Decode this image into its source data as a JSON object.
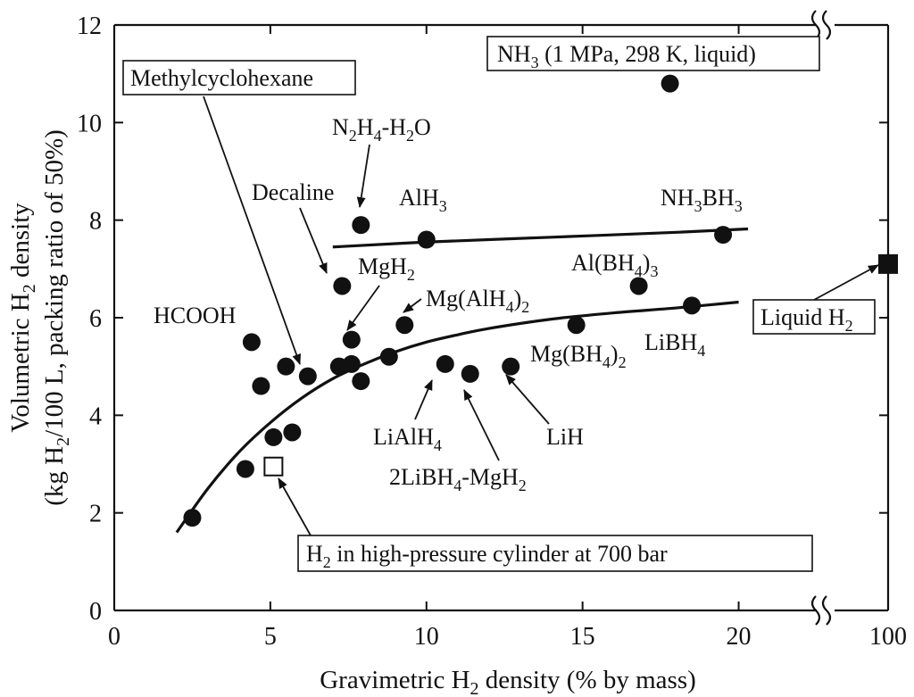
{
  "chart_data": {
    "type": "scatter",
    "xlabel": "Gravimetric H2 density (% by mass)",
    "ylabel_line1": "Volumetric H2 density",
    "ylabel_line2": "(kg H2/100 L, packing ratio of 50%)",
    "xlim": [
      0,
      22.5
    ],
    "x_break_label": "100",
    "ylim": [
      0,
      12
    ],
    "x_ticks": [
      0,
      5,
      10,
      15,
      20
    ],
    "y_ticks": [
      0,
      2,
      4,
      6,
      8,
      10,
      12
    ],
    "points": [
      {
        "label": "NH3 (1 MPa, 298 K, liquid)",
        "x": 17.8,
        "y": 10.8
      },
      {
        "label": "N2H4-H2O",
        "x": 7.9,
        "y": 7.9
      },
      {
        "label": "AlH3",
        "x": 10.0,
        "y": 7.6
      },
      {
        "label": "NH3BH3",
        "x": 19.5,
        "y": 7.7
      },
      {
        "label": "Decaline",
        "x": 7.3,
        "y": 6.65
      },
      {
        "label": "Al(BH4)3",
        "x": 16.8,
        "y": 6.65
      },
      {
        "label": "LiBH4",
        "x": 18.5,
        "y": 6.25
      },
      {
        "label": "MgH2",
        "x": 7.6,
        "y": 5.55
      },
      {
        "label": "Mg(AlH4)2",
        "x": 9.3,
        "y": 5.85
      },
      {
        "label": "Mg(BH4)2",
        "x": 14.8,
        "y": 5.85
      },
      {
        "label": "HCOOH",
        "x": 4.4,
        "y": 5.5
      },
      {
        "label": "Methylcyclohexane",
        "x": 6.2,
        "y": 4.8
      },
      {
        "label": "",
        "x": 4.7,
        "y": 4.6
      },
      {
        "label": "",
        "x": 5.5,
        "y": 5.0
      },
      {
        "label": "",
        "x": 7.2,
        "y": 5.0
      },
      {
        "label": "",
        "x": 7.6,
        "y": 5.05
      },
      {
        "label": "",
        "x": 7.9,
        "y": 4.7
      },
      {
        "label": "",
        "x": 8.8,
        "y": 5.2
      },
      {
        "label": "LiAlH4",
        "x": 10.6,
        "y": 5.05
      },
      {
        "label": "2LiBH4-MgH2",
        "x": 11.4,
        "y": 4.85
      },
      {
        "label": "LiH",
        "x": 12.7,
        "y": 5.0
      },
      {
        "label": "",
        "x": 5.1,
        "y": 3.55
      },
      {
        "label": "",
        "x": 5.7,
        "y": 3.65
      },
      {
        "label": "",
        "x": 4.2,
        "y": 2.9
      },
      {
        "label": "",
        "x": 2.5,
        "y": 1.9
      }
    ],
    "cylinder_point": {
      "label": "H2 in high-pressure cylinder at 700 bar",
      "x": 5.1,
      "y": 2.95
    },
    "liquid_h2_point": {
      "label": "Liquid H2",
      "x": 100,
      "y": 7.1
    },
    "fit_lines": [
      {
        "points": [
          [
            7.0,
            7.45
          ],
          [
            10.0,
            7.55
          ],
          [
            14.0,
            7.65
          ],
          [
            18.0,
            7.75
          ],
          [
            20.3,
            7.82
          ]
        ]
      },
      {
        "points": [
          [
            2.0,
            1.6
          ],
          [
            3.0,
            2.5
          ],
          [
            4.0,
            3.25
          ],
          [
            5.0,
            3.85
          ],
          [
            6.0,
            4.35
          ],
          [
            7.0,
            4.75
          ],
          [
            8.0,
            5.05
          ],
          [
            9.0,
            5.3
          ],
          [
            10.0,
            5.5
          ],
          [
            11.0,
            5.65
          ],
          [
            12.0,
            5.78
          ],
          [
            14.0,
            5.97
          ],
          [
            16.0,
            6.1
          ],
          [
            18.0,
            6.2
          ],
          [
            20.0,
            6.32
          ]
        ]
      }
    ]
  },
  "annotations": {
    "methylcyclohexane": "Methylcyclohexane",
    "nh3": "NH3 (1 MPa, 298 K, liquid)",
    "cylinder": "H2 in high-pressure cylinder at 700 bar",
    "liquid_h2": "Liquid H2"
  }
}
